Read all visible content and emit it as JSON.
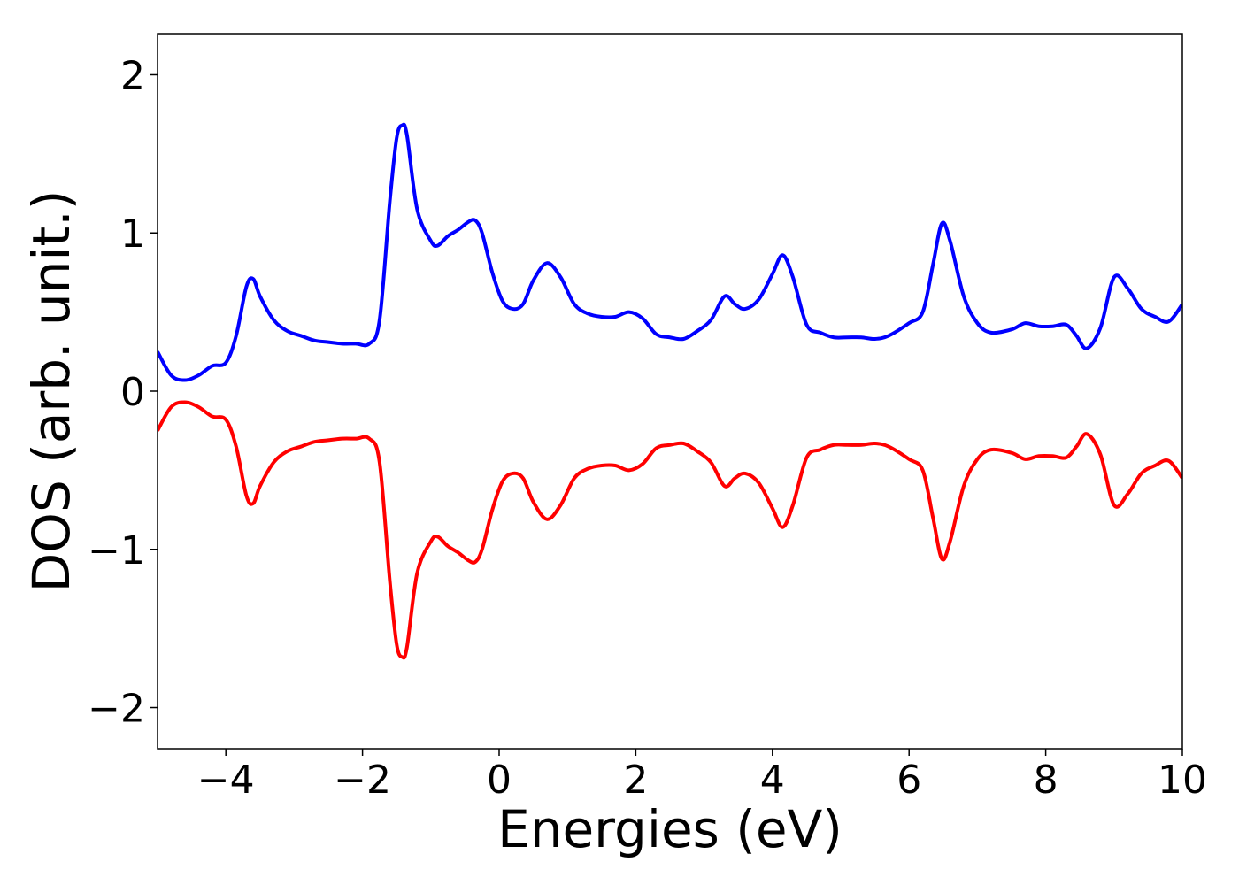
{
  "chart_data": {
    "type": "line",
    "title": "",
    "xlabel": "Energies (eV)",
    "ylabel": "DOS (arb. unit.)",
    "xlim": [
      -5,
      10
    ],
    "ylim": [
      -2.26,
      2.26
    ],
    "xticks": [
      -4,
      -2,
      0,
      2,
      4,
      6,
      8,
      10
    ],
    "xtick_labels": [
      "−4",
      "−2",
      "0",
      "2",
      "4",
      "6",
      "8",
      "10"
    ],
    "yticks": [
      -2,
      -1,
      0,
      1,
      2
    ],
    "ytick_labels": [
      "−2",
      "−1",
      "0",
      "1",
      "2"
    ],
    "grid": false,
    "legend": "none",
    "series": [
      {
        "color": "#0000ff",
        "x": [
          -5.0,
          -4.8,
          -4.6,
          -4.4,
          -4.2,
          -4.0,
          -3.85,
          -3.7,
          -3.6,
          -3.5,
          -3.3,
          -3.1,
          -2.9,
          -2.7,
          -2.5,
          -2.3,
          -2.1,
          -1.9,
          -1.75,
          -1.6,
          -1.5,
          -1.42,
          -1.35,
          -1.2,
          -1.0,
          -0.9,
          -0.75,
          -0.6,
          -0.45,
          -0.35,
          -0.25,
          -0.1,
          0.05,
          0.2,
          0.35,
          0.5,
          0.7,
          0.9,
          1.1,
          1.3,
          1.5,
          1.7,
          1.9,
          2.1,
          2.3,
          2.5,
          2.7,
          2.9,
          3.1,
          3.3,
          3.45,
          3.6,
          3.8,
          4.0,
          4.15,
          4.3,
          4.5,
          4.7,
          4.9,
          5.1,
          5.3,
          5.5,
          5.7,
          6.0,
          6.2,
          6.35,
          6.48,
          6.6,
          6.8,
          7.0,
          7.2,
          7.5,
          7.7,
          7.9,
          8.1,
          8.3,
          8.45,
          8.6,
          8.8,
          9.0,
          9.2,
          9.4,
          9.6,
          9.8,
          10.0
        ],
        "y": [
          0.25,
          0.1,
          0.07,
          0.1,
          0.16,
          0.18,
          0.35,
          0.66,
          0.71,
          0.6,
          0.45,
          0.38,
          0.35,
          0.32,
          0.31,
          0.3,
          0.3,
          0.3,
          0.45,
          1.2,
          1.6,
          1.68,
          1.62,
          1.15,
          0.95,
          0.92,
          0.98,
          1.02,
          1.07,
          1.08,
          1.0,
          0.75,
          0.57,
          0.52,
          0.55,
          0.7,
          0.81,
          0.72,
          0.55,
          0.49,
          0.47,
          0.47,
          0.5,
          0.46,
          0.36,
          0.34,
          0.33,
          0.38,
          0.45,
          0.6,
          0.55,
          0.52,
          0.58,
          0.74,
          0.86,
          0.72,
          0.42,
          0.37,
          0.34,
          0.34,
          0.34,
          0.33,
          0.35,
          0.43,
          0.5,
          0.8,
          1.06,
          0.95,
          0.6,
          0.43,
          0.37,
          0.39,
          0.43,
          0.41,
          0.41,
          0.42,
          0.35,
          0.27,
          0.4,
          0.72,
          0.65,
          0.52,
          0.47,
          0.44,
          0.55
        ]
      },
      {
        "color": "#ff0000",
        "x": [
          -5.0,
          -4.8,
          -4.6,
          -4.4,
          -4.2,
          -4.0,
          -3.85,
          -3.7,
          -3.6,
          -3.5,
          -3.3,
          -3.1,
          -2.9,
          -2.7,
          -2.5,
          -2.3,
          -2.1,
          -1.9,
          -1.75,
          -1.6,
          -1.5,
          -1.42,
          -1.35,
          -1.2,
          -1.0,
          -0.9,
          -0.75,
          -0.6,
          -0.45,
          -0.35,
          -0.25,
          -0.1,
          0.05,
          0.2,
          0.35,
          0.5,
          0.7,
          0.9,
          1.1,
          1.3,
          1.5,
          1.7,
          1.9,
          2.1,
          2.3,
          2.5,
          2.7,
          2.9,
          3.1,
          3.3,
          3.45,
          3.6,
          3.8,
          4.0,
          4.15,
          4.3,
          4.5,
          4.7,
          4.9,
          5.1,
          5.3,
          5.5,
          5.7,
          6.0,
          6.2,
          6.35,
          6.48,
          6.6,
          6.8,
          7.0,
          7.2,
          7.5,
          7.7,
          7.9,
          8.1,
          8.3,
          8.45,
          8.6,
          8.8,
          9.0,
          9.2,
          9.4,
          9.6,
          9.8,
          10.0
        ],
        "y": [
          -0.25,
          -0.1,
          -0.07,
          -0.1,
          -0.16,
          -0.18,
          -0.35,
          -0.66,
          -0.71,
          -0.6,
          -0.45,
          -0.38,
          -0.35,
          -0.32,
          -0.31,
          -0.3,
          -0.3,
          -0.3,
          -0.45,
          -1.2,
          -1.6,
          -1.68,
          -1.62,
          -1.15,
          -0.95,
          -0.92,
          -0.98,
          -1.02,
          -1.07,
          -1.08,
          -1.0,
          -0.75,
          -0.57,
          -0.52,
          -0.55,
          -0.7,
          -0.81,
          -0.72,
          -0.55,
          -0.49,
          -0.47,
          -0.47,
          -0.5,
          -0.46,
          -0.36,
          -0.34,
          -0.33,
          -0.38,
          -0.45,
          -0.6,
          -0.55,
          -0.52,
          -0.58,
          -0.74,
          -0.86,
          -0.72,
          -0.42,
          -0.37,
          -0.34,
          -0.34,
          -0.34,
          -0.33,
          -0.35,
          -0.43,
          -0.5,
          -0.8,
          -1.06,
          -0.95,
          -0.6,
          -0.43,
          -0.37,
          -0.39,
          -0.43,
          -0.41,
          -0.41,
          -0.42,
          -0.35,
          -0.27,
          -0.4,
          -0.72,
          -0.65,
          -0.52,
          -0.47,
          -0.44,
          -0.55
        ]
      }
    ]
  }
}
